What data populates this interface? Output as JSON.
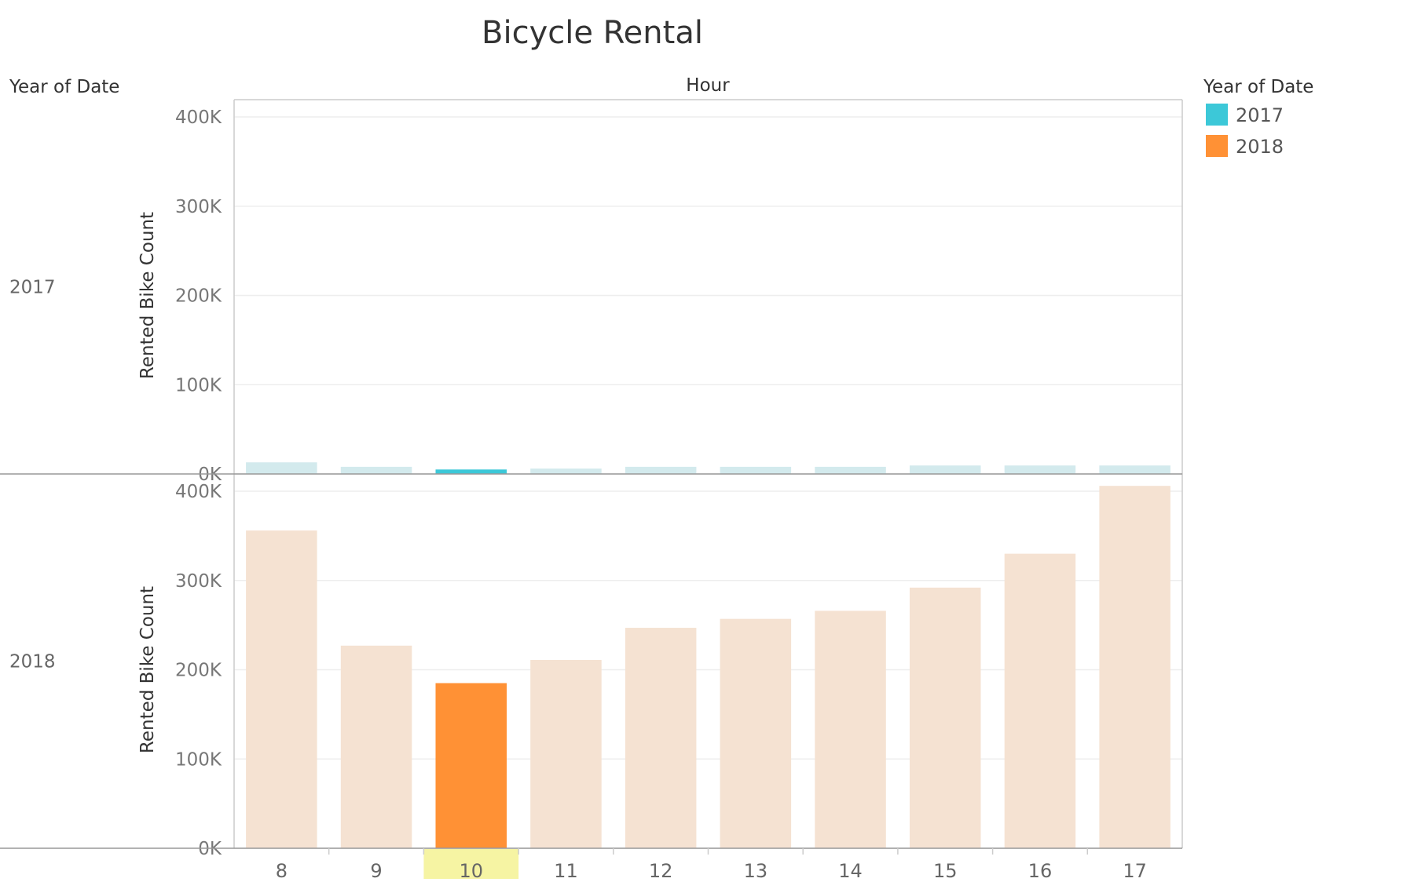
{
  "title": "Bicycle Rental",
  "row_header": "Year of Date",
  "column_header": "Hour",
  "legend": {
    "title": "Year of Date",
    "items": [
      {
        "label": "2017",
        "color": "#3CC8D8"
      },
      {
        "label": "2018",
        "color": "#FF9135"
      }
    ]
  },
  "highlighted_category": "10",
  "chart_data": {
    "type": "bar",
    "title": "Bicycle Rental",
    "xlabel": "Hour",
    "ylabel": "Rented Bike Count",
    "categories": [
      "8",
      "9",
      "10",
      "11",
      "12",
      "13",
      "14",
      "15",
      "16",
      "17"
    ],
    "ylim": [
      0,
      400000
    ],
    "yticks": [
      0,
      100000,
      200000,
      300000,
      400000
    ],
    "ytick_labels": [
      "0K",
      "100K",
      "200K",
      "300K",
      "400K"
    ],
    "grid": true,
    "legend_position": "right",
    "panels": [
      {
        "name": "2017",
        "color": "#3CC8D8",
        "faded_color": "#D3EAED",
        "values": [
          13000,
          8000,
          5000,
          6000,
          8000,
          8000,
          8000,
          9500,
          9500,
          9500
        ]
      },
      {
        "name": "2018",
        "color": "#FF9135",
        "faded_color": "#F5E2D2",
        "values": [
          356000,
          227000,
          185000,
          211000,
          247000,
          257000,
          266000,
          292000,
          330000,
          406000
        ]
      }
    ]
  }
}
